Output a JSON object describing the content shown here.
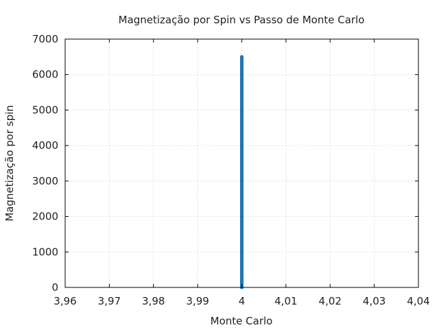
{
  "chart_data": {
    "type": "line",
    "title": "Magnetização por Spin vs Passo de Monte Carlo",
    "xlabel": "Monte Carlo",
    "ylabel": "Magnetização por spin",
    "xlim": [
      3.96,
      4.04
    ],
    "ylim": [
      0,
      7000
    ],
    "x_ticks": [
      3.96,
      3.97,
      3.98,
      3.99,
      4.0,
      4.01,
      4.02,
      4.03,
      4.04
    ],
    "x_tick_labels": [
      "3,96",
      "3,97",
      "3,98",
      "3,99",
      "4",
      "4,01",
      "4,02",
      "4,03",
      "4,04"
    ],
    "y_ticks": [
      0,
      1000,
      2000,
      3000,
      4000,
      5000,
      6000,
      7000
    ],
    "y_tick_labels": [
      "0",
      "1000",
      "2000",
      "3000",
      "4000",
      "5000",
      "6000",
      "7000"
    ],
    "grid": true,
    "legend": "none",
    "series": [
      {
        "color": "#1f77b4",
        "points": [
          [
            4.0,
            0
          ],
          [
            4.0,
            6500
          ]
        ]
      }
    ]
  }
}
